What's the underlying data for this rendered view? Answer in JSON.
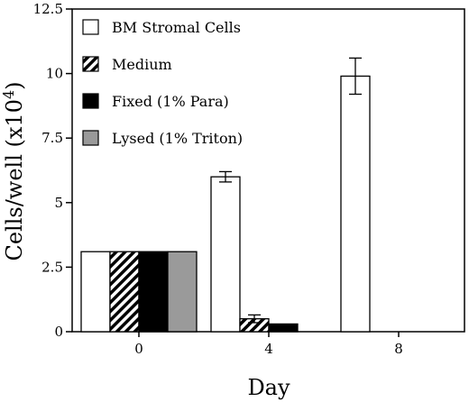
{
  "chart_data": {
    "type": "bar",
    "categories": [
      "0",
      "4",
      "8"
    ],
    "xlabel": "Day",
    "ylabel": "Cells/well (x10",
    "ylabel_superscript": "4",
    "ylabel_close": ")",
    "ylim": [
      0,
      12.5
    ],
    "yticks": [
      "0",
      "2.5",
      "5",
      "7.5",
      "10",
      "12.5"
    ],
    "ytick_values": [
      0,
      2.5,
      5,
      7.5,
      10,
      12.5
    ],
    "legend_position": "top-left, inside plot",
    "series": [
      {
        "name": "BM Stromal Cells",
        "fill": "#ffffff",
        "pattern": "none",
        "values": [
          3.1,
          6.0,
          9.9
        ],
        "errors": [
          null,
          0.2,
          0.7
        ]
      },
      {
        "name": "Medium",
        "fill": "#ffffff",
        "pattern": "diagonal-hatch",
        "values": [
          3.1,
          0.5,
          null
        ],
        "errors": [
          null,
          0.15,
          null
        ]
      },
      {
        "name": "Fixed (1% Para)",
        "fill": "#000000",
        "pattern": "none",
        "values": [
          3.1,
          0.3,
          null
        ],
        "errors": [
          null,
          null,
          null
        ]
      },
      {
        "name": "Lysed (1% Triton)",
        "fill": "#9a9a9a",
        "pattern": "none",
        "values": [
          3.1,
          null,
          null
        ],
        "errors": [
          null,
          null,
          null
        ]
      }
    ]
  }
}
